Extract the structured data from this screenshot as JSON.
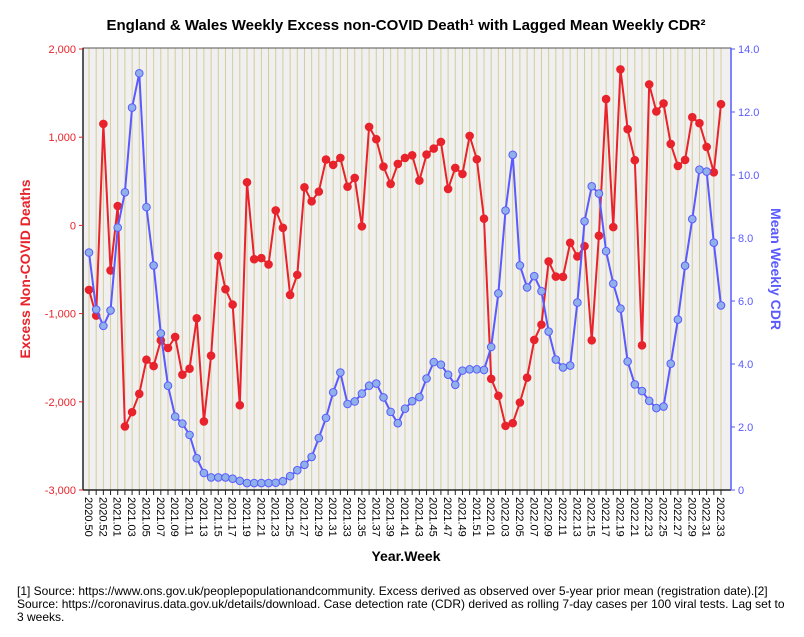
{
  "chart_data": {
    "type": "line",
    "title": "England & Wales Weekly Excess non-COVID Death¹ with Lagged Mean Weekly CDR²",
    "xlabel": "Year.Week",
    "ylabel": "Excess Non-COVID Deaths",
    "y2label": "Mean Weekly CDR",
    "ylim": [
      -3000,
      2000
    ],
    "y2lim": [
      0,
      14
    ],
    "yticks": [
      -3000,
      -2000,
      -1000,
      0,
      1000,
      2000
    ],
    "ytick_labels": [
      "-3,000",
      "-2,000",
      "-1,000",
      "0",
      "1,000",
      "2,000"
    ],
    "y2ticks": [
      0,
      2,
      4,
      6,
      8,
      10,
      12,
      14
    ],
    "y2tick_labels": [
      "0",
      "2.0",
      "4.0",
      "6.0",
      "8.0",
      "10.0",
      "12.0",
      "14.0"
    ],
    "grid": "vertical",
    "categories": [
      "2020.50",
      "2020.51",
      "2020.52",
      "2020.53",
      "2021.01",
      "2021.02",
      "2021.03",
      "2021.04",
      "2021.05",
      "2021.06",
      "2021.07",
      "2021.08",
      "2021.09",
      "2021.10",
      "2021.11",
      "2021.12",
      "2021.13",
      "2021.14",
      "2021.15",
      "2021.16",
      "2021.17",
      "2021.18",
      "2021.19",
      "2021.20",
      "2021.21",
      "2021.22",
      "2021.23",
      "2021.24",
      "2021.25",
      "2021.26",
      "2021.27",
      "2021.28",
      "2021.29",
      "2021.30",
      "2021.31",
      "2021.32",
      "2021.33",
      "2021.34",
      "2021.35",
      "2021.36",
      "2021.37",
      "2021.38",
      "2021.39",
      "2021.40",
      "2021.41",
      "2021.42",
      "2021.43",
      "2021.44",
      "2021.45",
      "2021.46",
      "2021.47",
      "2021.48",
      "2021.49",
      "2021.50",
      "2021.51",
      "2021.52",
      "2022.01",
      "2022.02",
      "2022.03",
      "2022.04",
      "2022.05",
      "2022.06",
      "2022.07",
      "2022.08",
      "2022.09",
      "2022.10",
      "2022.11",
      "2022.12",
      "2022.13",
      "2022.14",
      "2022.15",
      "2022.16",
      "2022.17",
      "2022.18",
      "2022.19",
      "2022.20",
      "2022.21",
      "2022.22",
      "2022.23",
      "2022.24",
      "2022.25",
      "2022.26",
      "2022.27",
      "2022.28",
      "2022.29",
      "2022.30",
      "2022.31",
      "2022.32",
      "2022.33"
    ],
    "series": [
      {
        "name": "Excess Non-COVID Deaths",
        "axis": "left",
        "color": "#e8232b",
        "values": [
          -731,
          -1023,
          1151,
          -511,
          220,
          -2280,
          -2117,
          -1909,
          -1523,
          -1595,
          -1303,
          -1390,
          -1265,
          -1693,
          -1625,
          -1053,
          -2223,
          -1477,
          -348,
          -723,
          -898,
          -2038,
          489,
          -383,
          -371,
          -443,
          170,
          -27,
          -788,
          -561,
          432,
          273,
          383,
          746,
          686,
          765,
          439,
          538,
          -11,
          1117,
          977,
          667,
          470,
          697,
          765,
          795,
          508,
          803,
          871,
          947,
          413,
          652,
          583,
          1015,
          750,
          76,
          -1739,
          -1932,
          -2273,
          -2242,
          -2008,
          -1727,
          -1299,
          -1125,
          -409,
          -580,
          -583,
          -197,
          -352,
          -235,
          -1303,
          -117,
          1432,
          -19,
          1769,
          1091,
          739,
          -1360,
          1599,
          1292,
          1383,
          924,
          674,
          742,
          1227,
          1159,
          890,
          602,
          1375
        ]
      },
      {
        "name": "Mean Weekly CDR",
        "axis": "right",
        "color": "#5a5aff",
        "values": [
          7.54,
          5.73,
          5.21,
          5.7,
          8.33,
          9.45,
          12.14,
          13.23,
          8.98,
          7.13,
          4.97,
          3.31,
          2.33,
          2.11,
          1.75,
          1.01,
          0.54,
          0.4,
          0.4,
          0.4,
          0.36,
          0.29,
          0.22,
          0.22,
          0.22,
          0.22,
          0.23,
          0.28,
          0.44,
          0.63,
          0.8,
          1.05,
          1.65,
          2.29,
          3.1,
          3.73,
          2.73,
          2.81,
          3.06,
          3.31,
          3.38,
          2.94,
          2.48,
          2.12,
          2.58,
          2.82,
          2.95,
          3.54,
          4.06,
          3.98,
          3.66,
          3.34,
          3.79,
          3.83,
          3.83,
          3.81,
          4.54,
          6.24,
          8.87,
          10.64,
          7.13,
          6.43,
          6.79,
          6.31,
          5.03,
          4.14,
          3.89,
          3.95,
          5.95,
          8.53,
          9.64,
          9.41,
          7.58,
          6.55,
          5.76,
          4.08,
          3.35,
          3.14,
          2.83,
          2.6,
          2.65,
          4.01,
          5.41,
          7.12,
          8.6,
          10.17,
          10.11,
          7.85,
          5.86
        ]
      }
    ]
  },
  "footnote": "[1] Source: https://www.ons.gov.uk/peoplepopulationandcommunity. Excess derived as observed over 5-year prior mean (registration date).[2] Source: https://coronavirus.data.gov.uk/details/download. Case detection rate (CDR) derived as rolling 7-day cases per 100 viral tests. Lag set to 3 weeks."
}
